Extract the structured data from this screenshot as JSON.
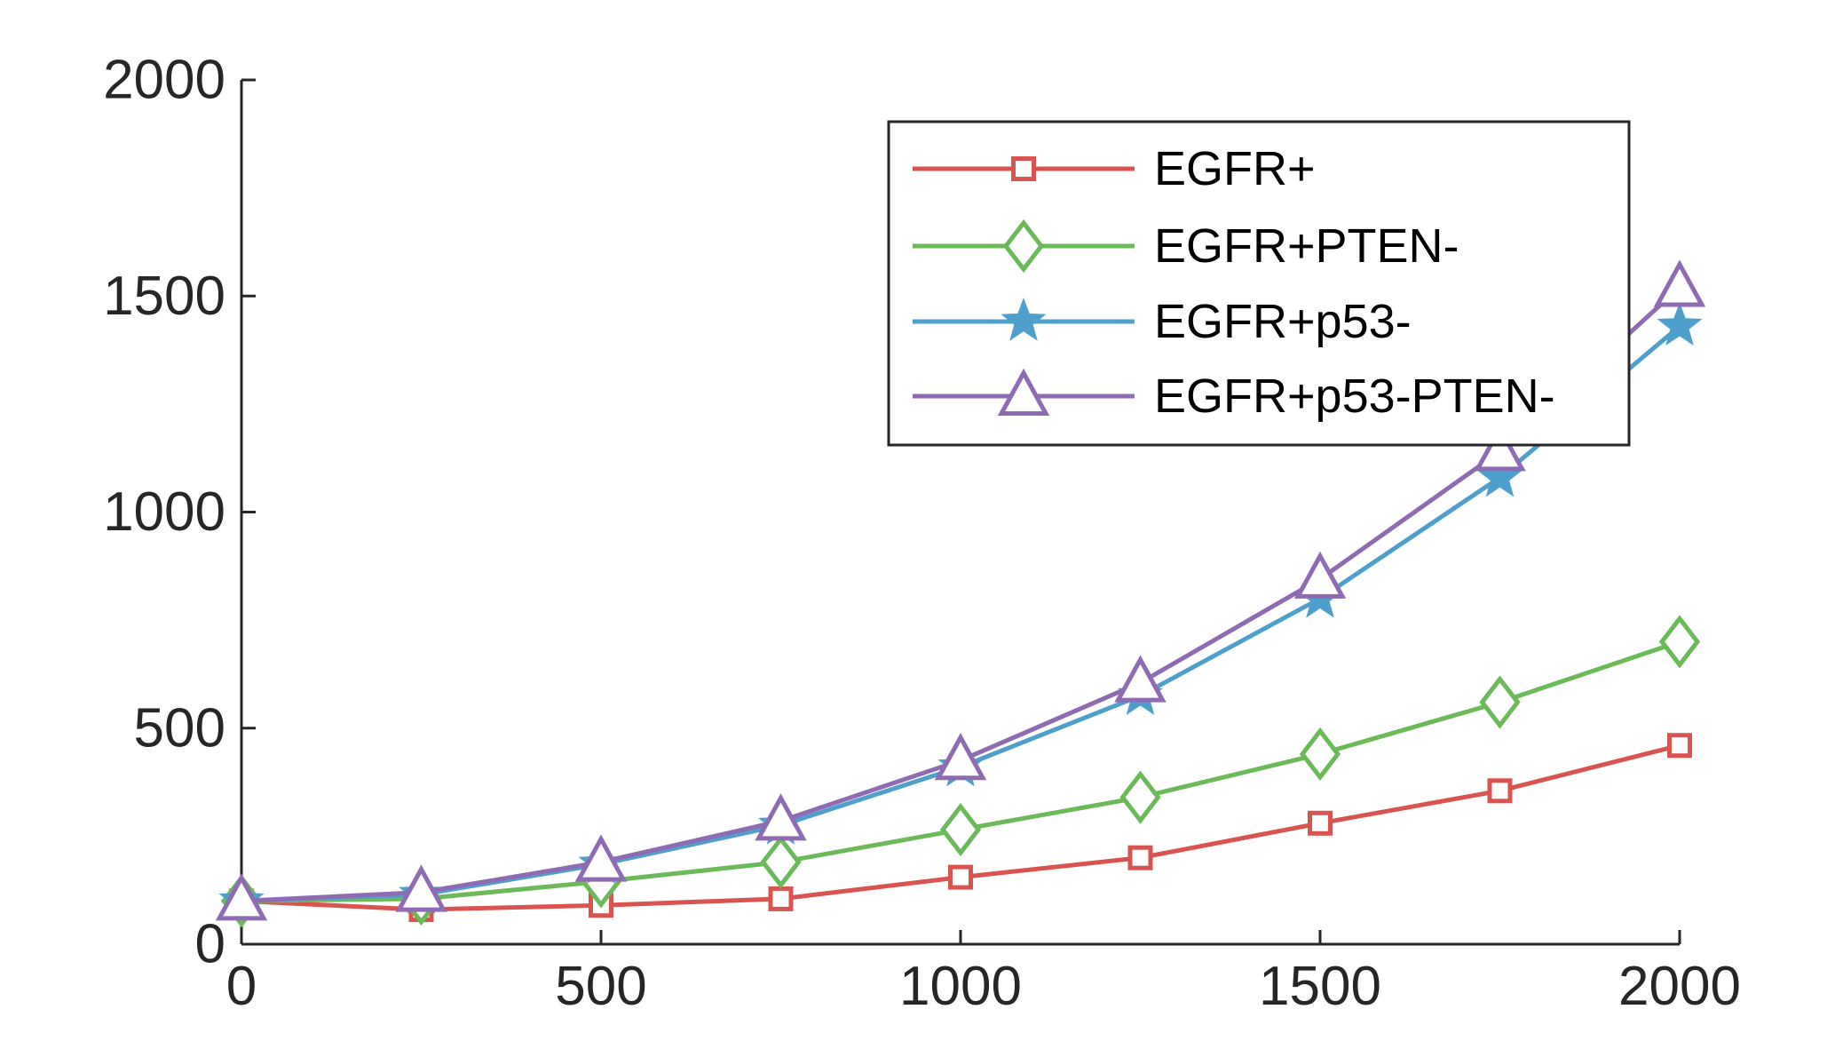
{
  "chart_data": {
    "type": "line",
    "title": "",
    "xlabel": "",
    "ylabel": "",
    "xlim": [
      0,
      2000
    ],
    "ylim": [
      0,
      2000
    ],
    "x_ticks": [
      "0",
      "500",
      "1000",
      "1500",
      "2000"
    ],
    "y_ticks": [
      "0",
      "500",
      "1000",
      "1500",
      "2000"
    ],
    "grid": false,
    "legend_position": "top-right",
    "x": [
      0,
      250,
      500,
      750,
      1000,
      1250,
      1500,
      1750,
      2000
    ],
    "series": [
      {
        "name": "EGFR+",
        "color": "#d9534f",
        "marker": "square",
        "values": [
          100,
          80,
          90,
          105,
          155,
          200,
          280,
          355,
          460
        ]
      },
      {
        "name": "EGFR+PTEN-",
        "color": "#6aba58",
        "marker": "diamond",
        "values": [
          100,
          105,
          145,
          190,
          265,
          340,
          440,
          560,
          700
        ]
      },
      {
        "name": "EGFR+p53-",
        "color": "#4f9fcc",
        "marker": "star",
        "values": [
          100,
          115,
          185,
          275,
          410,
          575,
          800,
          1080,
          1430
        ]
      },
      {
        "name": "EGFR+p53-PTEN-",
        "color": "#8e6bb3",
        "marker": "triangle",
        "values": [
          100,
          120,
          190,
          285,
          425,
          605,
          845,
          1140,
          1520
        ]
      }
    ]
  }
}
